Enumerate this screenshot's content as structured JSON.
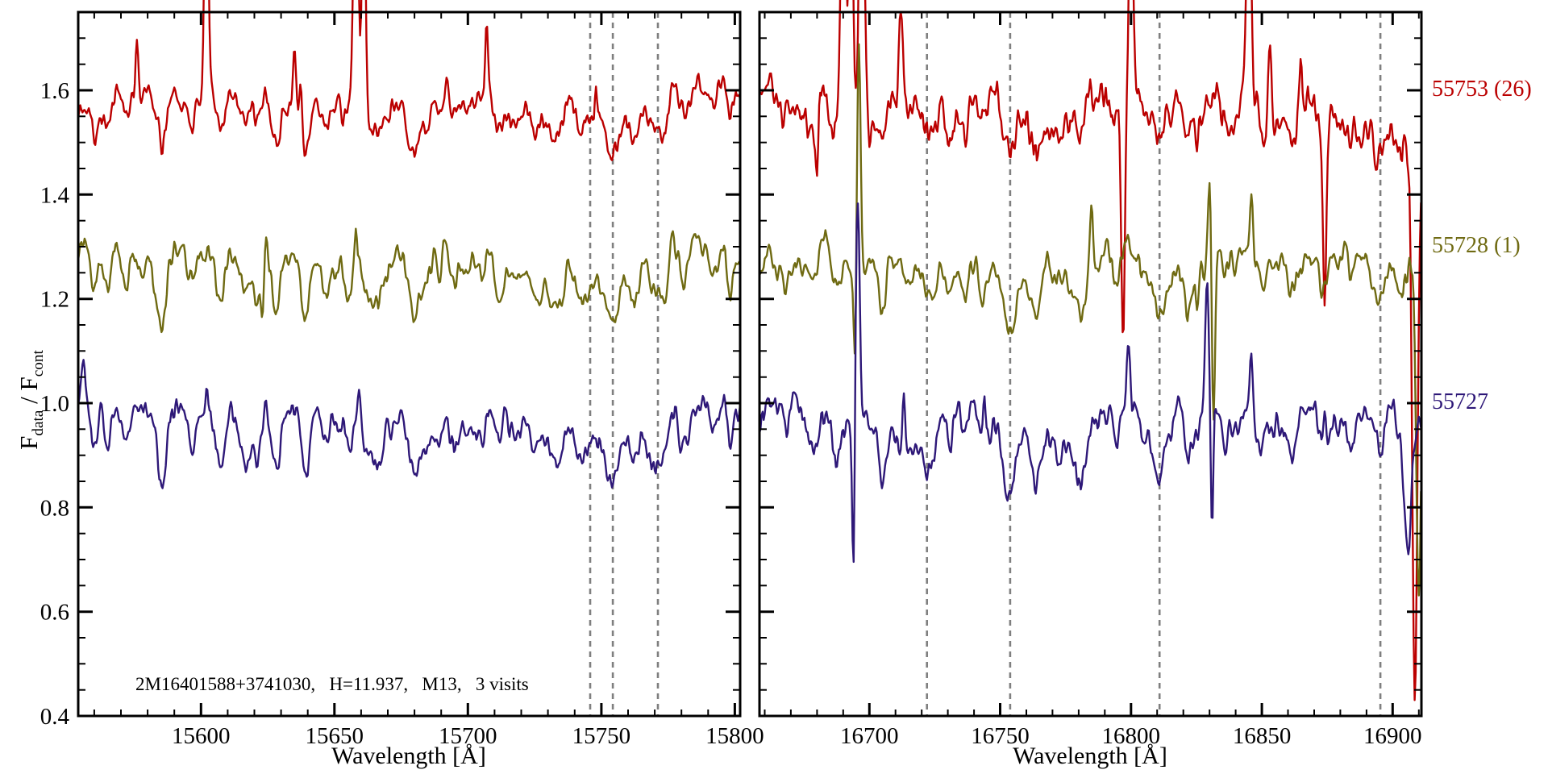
{
  "chart_data": {
    "type": "line",
    "title": "",
    "xlabel": "Wavelength [Å]",
    "ylabel": "F_data / F_cont",
    "ylabel_parts": {
      "f1": "F",
      "s1": "data",
      "mid": " / F",
      "s2": "cont"
    },
    "annotation": "2M16401588+3741030,   H=11.937,   M13,   3 visits",
    "ylim": [
      0.4,
      1.75
    ],
    "yticks": [
      0.4,
      0.6,
      0.8,
      1.0,
      1.2,
      1.4,
      1.6
    ],
    "ytick_minor_step": 0.05,
    "xtick_minor_step": 10,
    "grid": false,
    "axis_color": "#000000",
    "dashed_color": "#7f7f7f",
    "background": "#ffffff",
    "legend_position": "right-outside",
    "panels": [
      {
        "xlim": [
          15554,
          15802
        ],
        "xticks": [
          15600,
          15650,
          15700,
          15750,
          15800
        ],
        "dashed_lines": [
          15745.8,
          15754.3,
          15771.2
        ],
        "line_seed": 7,
        "lines": [
          [
            15560,
            0.05,
            1.2
          ],
          [
            15565,
            0.06,
            1.5
          ],
          [
            15572,
            0.05,
            1.2
          ],
          [
            15585,
            0.07,
            1.8
          ],
          [
            15597,
            0.05,
            1.4
          ],
          [
            15607,
            0.06,
            1.5
          ],
          [
            15617,
            0.07,
            1.4
          ],
          [
            15621,
            0.09,
            1.6
          ],
          [
            15628,
            0.08,
            1.4
          ],
          [
            15639,
            0.09,
            1.7
          ],
          [
            15647,
            0.06,
            1.4
          ],
          [
            15655,
            0.05,
            1.4
          ],
          [
            15666,
            0.08,
            1.8
          ],
          [
            15680,
            0.06,
            1.8
          ],
          [
            15695,
            0.04,
            1.4
          ],
          [
            15712,
            0.05,
            1.5
          ],
          [
            15725,
            0.06,
            1.8
          ],
          [
            15735,
            0.04,
            1.4
          ],
          [
            15745.8,
            0.06,
            2.0
          ],
          [
            15754.3,
            0.09,
            2.2
          ],
          [
            15762,
            0.05,
            1.5
          ],
          [
            15771.2,
            0.09,
            2.4
          ],
          [
            15781,
            0.05,
            1.5
          ],
          [
            15792,
            0.04,
            1.4
          ]
        ]
      },
      {
        "xlim": [
          16658,
          16911
        ],
        "xticks": [
          16700,
          16750,
          16800,
          16850,
          16900
        ],
        "dashed_lines": [
          16722,
          16753.8,
          16810.9,
          16895.3
        ],
        "line_seed": 8,
        "lines": [
          [
            16668,
            0.05,
            1.5
          ],
          [
            16678,
            0.06,
            1.8
          ],
          [
            16688,
            0.05,
            1.4
          ],
          [
            16705,
            0.06,
            2.0
          ],
          [
            16715,
            0.05,
            1.5
          ],
          [
            16722,
            0.08,
            2.2
          ],
          [
            16731,
            0.08,
            1.8
          ],
          [
            16744,
            0.06,
            1.8
          ],
          [
            16753.8,
            0.13,
            2.6
          ],
          [
            16763,
            0.11,
            2.4
          ],
          [
            16772,
            0.06,
            1.8
          ],
          [
            16781,
            0.05,
            1.5
          ],
          [
            16794,
            0.05,
            1.8
          ],
          [
            16805,
            0.05,
            1.8
          ],
          [
            16810.9,
            0.08,
            2.4
          ],
          [
            16822,
            0.05,
            1.8
          ],
          [
            16836,
            0.05,
            1.8
          ],
          [
            16850,
            0.05,
            1.8
          ],
          [
            16862,
            0.05,
            1.8
          ],
          [
            16874,
            0.06,
            1.8
          ],
          [
            16884,
            0.05,
            1.8
          ],
          [
            16895.3,
            0.07,
            2.2
          ],
          [
            16904,
            0.05,
            1.6
          ]
        ]
      }
    ],
    "series": [
      {
        "label": "55753 (26)",
        "color": "#bb0000",
        "offset": 1.6,
        "depth_scale": 0.85,
        "panels": [
          {
            "seed": 101,
            "noise_scale": 1.0,
            "spikes": [
              [
                15576,
                0.11,
                0.5
              ],
              [
                15602,
                0.5,
                0.7
              ],
              [
                15635,
                0.12,
                0.6
              ],
              [
                15637.5,
                0.1,
                0.5
              ],
              [
                15653,
                -0.06,
                0.5
              ],
              [
                15658,
                0.55,
                0.8
              ],
              [
                15661,
                0.5,
                0.6
              ],
              [
                15707,
                0.13,
                0.6
              ],
              [
                15748,
                0.05,
                0.4
              ]
            ]
          },
          {
            "seed": 201,
            "noise_scale": 1.6,
            "drift": [
              [
                16658,
                0
              ],
              [
                16830,
                0
              ],
              [
                16912,
                -0.075
              ]
            ],
            "spikes": [
              [
                16680,
                -0.1,
                0.5
              ],
              [
                16690,
                0.55,
                0.9
              ],
              [
                16693,
                0.5,
                0.7
              ],
              [
                16697,
                0.55,
                0.9
              ],
              [
                16700,
                -0.12,
                0.6
              ],
              [
                16712,
                0.15,
                0.7
              ],
              [
                16797,
                -0.5,
                0.7
              ],
              [
                16800,
                0.45,
                0.7
              ],
              [
                16845,
                0.5,
                0.8
              ],
              [
                16853,
                0.14,
                0.6
              ],
              [
                16865,
                0.09,
                0.5
              ],
              [
                16874,
                -0.33,
                0.6
              ],
              [
                16908.5,
                -1.05,
                1.0
              ]
            ]
          }
        ]
      },
      {
        "label": "55728 (1)",
        "color": "#6f6a12",
        "offset": 1.3,
        "depth_scale": 1.1,
        "panels": [
          {
            "seed": 102,
            "noise_scale": 1.0,
            "spikes": [
              [
                15623,
                -0.1,
                0.5
              ],
              [
                15658,
                0.06,
                0.5
              ]
            ]
          },
          {
            "seed": 202,
            "noise_scale": 1.0,
            "spikes": [
              [
                16694.5,
                -0.17,
                0.5
              ],
              [
                16696,
                0.45,
                0.7
              ],
              [
                16785,
                0.12,
                0.6
              ],
              [
                16830,
                0.15,
                0.7
              ],
              [
                16831.5,
                -0.36,
                0.6
              ],
              [
                16846,
                0.13,
                0.5
              ],
              [
                16910,
                -0.6,
                1.0
              ]
            ]
          }
        ]
      },
      {
        "label": "55727",
        "color": "#2e1878",
        "offset": 1.0,
        "depth_scale": 1.2,
        "panels": [
          {
            "seed": 103,
            "noise_scale": 1.0,
            "spikes": [
              [
                15556,
                0.1,
                0.9
              ],
              [
                15602,
                0.05,
                0.5
              ],
              [
                15659,
                0.05,
                0.5
              ]
            ]
          },
          {
            "seed": 203,
            "noise_scale": 1.1,
            "spikes": [
              [
                16694,
                -0.33,
                0.5
              ],
              [
                16695.5,
                0.47,
                0.8
              ],
              [
                16713,
                0.1,
                0.5
              ],
              [
                16744,
                0.08,
                0.5
              ],
              [
                16799,
                0.13,
                0.6
              ],
              [
                16829,
                0.26,
                0.7
              ],
              [
                16831,
                -0.23,
                0.5
              ],
              [
                16846,
                0.12,
                0.5
              ],
              [
                16874,
                0.07,
                0.5
              ],
              [
                16906,
                -0.28,
                1.3
              ]
            ]
          }
        ]
      }
    ]
  }
}
